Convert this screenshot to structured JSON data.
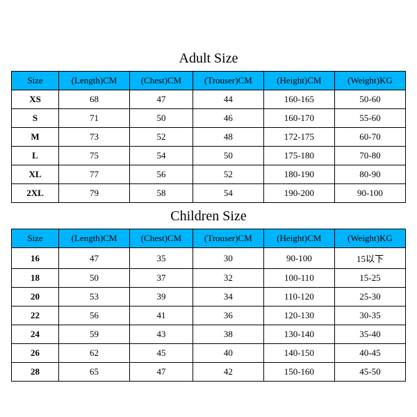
{
  "colors": {
    "header_bg": "#00b5ff",
    "border": "#000000",
    "text": "#000000",
    "background": "#ffffff"
  },
  "typography": {
    "title_fontsize": 20,
    "cell_fontsize": 13,
    "font_family": "Times New Roman"
  },
  "tables": [
    {
      "title": "Adult Size",
      "columns": [
        "Size",
        "(Length)CM",
        "(Chest)CM",
        "(Trouser)CM",
        "(Height)CM",
        "(Weight)KG"
      ],
      "column_widths_pct": [
        12,
        18,
        16,
        18,
        18,
        18
      ],
      "rows": [
        [
          "XS",
          "68",
          "47",
          "44",
          "160-165",
          "50-60"
        ],
        [
          "S",
          "71",
          "50",
          "46",
          "160-170",
          "55-60"
        ],
        [
          "M",
          "73",
          "52",
          "48",
          "172-175",
          "60-70"
        ],
        [
          "L",
          "75",
          "54",
          "50",
          "175-180",
          "70-80"
        ],
        [
          "XL",
          "77",
          "56",
          "52",
          "180-190",
          "80-90"
        ],
        [
          "2XL",
          "79",
          "58",
          "54",
          "190-200",
          "90-100"
        ]
      ]
    },
    {
      "title": "Children Size",
      "columns": [
        "Size",
        "(Length)CM",
        "(Chest)CM",
        "(Trouser)CM",
        "(Height)CM",
        "(Weight)KG"
      ],
      "column_widths_pct": [
        12,
        18,
        16,
        18,
        18,
        18
      ],
      "rows": [
        [
          "16",
          "47",
          "35",
          "30",
          "90-100",
          "15以下"
        ],
        [
          "18",
          "50",
          "37",
          "32",
          "100-110",
          "15-25"
        ],
        [
          "20",
          "53",
          "39",
          "34",
          "110-120",
          "25-30"
        ],
        [
          "22",
          "56",
          "41",
          "36",
          "120-130",
          "30-35"
        ],
        [
          "24",
          "59",
          "43",
          "38",
          "130-140",
          "35-40"
        ],
        [
          "26",
          "62",
          "45",
          "40",
          "140-150",
          "40-45"
        ],
        [
          "28",
          "65",
          "47",
          "42",
          "150-160",
          "45-50"
        ]
      ]
    }
  ]
}
